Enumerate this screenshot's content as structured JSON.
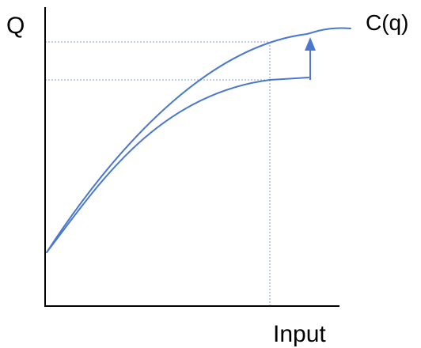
{
  "labels": {
    "y_axis": "Q",
    "x_axis": "Input",
    "curve": "C(q)"
  },
  "colors": {
    "curve": "#4A78D0",
    "guide": "#7FA2DE",
    "axis": "#000000"
  }
}
